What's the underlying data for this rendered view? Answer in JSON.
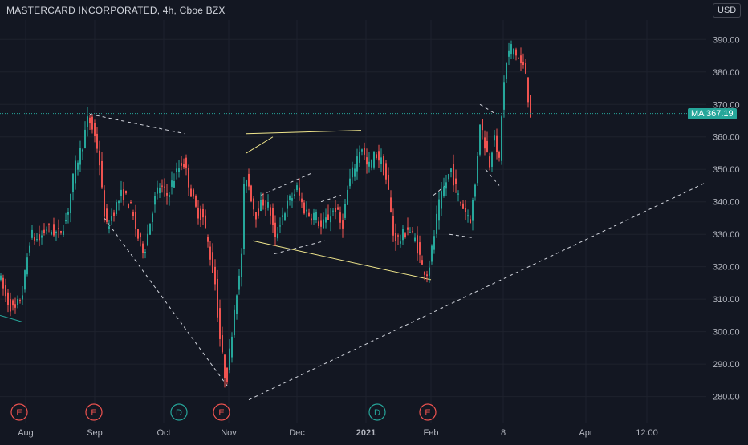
{
  "header": {
    "title": "MASTERCARD INCORPORATED, 4h, Cboe BZX",
    "currency": "USD"
  },
  "price_label": {
    "name": "MA",
    "value": "367.19"
  },
  "colors": {
    "background": "#131722",
    "up": "#26a69a",
    "down": "#ef5350",
    "grid": "#1e222d",
    "axis_text": "#b2b5be",
    "pattern_yellow": "#f0e68c",
    "trendline": "#d1d4dc"
  },
  "chart_data": {
    "type": "candlestick",
    "title": "MASTERCARD INCORPORATED, 4h, Cboe BZX",
    "ylim": [
      272,
      396
    ],
    "yticks": [
      280,
      290,
      300,
      310,
      320,
      330,
      340,
      350,
      360,
      370,
      380,
      390
    ],
    "ytick_labels": [
      "280.00",
      "290.00",
      "300.00",
      "310.00",
      "320.00",
      "330.00",
      "340.00",
      "350.00",
      "360.00",
      "370.00",
      "380.00",
      "390.00"
    ],
    "xticks": [
      {
        "label": "Aug",
        "bold": false,
        "pos": 32
      },
      {
        "label": "Sep",
        "bold": false,
        "pos": 118
      },
      {
        "label": "Oct",
        "bold": false,
        "pos": 204
      },
      {
        "label": "Nov",
        "bold": false,
        "pos": 285
      },
      {
        "label": "Dec",
        "bold": false,
        "pos": 370
      },
      {
        "label": "2021",
        "bold": true,
        "pos": 456
      },
      {
        "label": "Feb",
        "bold": false,
        "pos": 537
      },
      {
        "label": "8",
        "bold": false,
        "pos": 627
      },
      {
        "label": "Apr",
        "bold": false,
        "pos": 730
      },
      {
        "label": "12:00",
        "bold": false,
        "pos": 806
      }
    ],
    "last_price": 367.19,
    "events": [
      {
        "type": "E",
        "pos": 24
      },
      {
        "type": "E",
        "pos": 117
      },
      {
        "type": "D",
        "pos": 223
      },
      {
        "type": "E",
        "pos": 276
      },
      {
        "type": "D",
        "pos": 470
      },
      {
        "type": "E",
        "pos": 533
      }
    ],
    "price_path": [
      [
        0,
        318
      ],
      [
        10,
        310
      ],
      [
        20,
        306
      ],
      [
        30,
        312
      ],
      [
        40,
        330
      ],
      [
        50,
        328
      ],
      [
        60,
        332
      ],
      [
        75,
        330
      ],
      [
        85,
        335
      ],
      [
        95,
        350
      ],
      [
        105,
        358
      ],
      [
        112,
        366
      ],
      [
        118,
        362
      ],
      [
        125,
        355
      ],
      [
        130,
        340
      ],
      [
        135,
        332
      ],
      [
        145,
        338
      ],
      [
        155,
        343
      ],
      [
        165,
        338
      ],
      [
        175,
        328
      ],
      [
        182,
        325
      ],
      [
        192,
        338
      ],
      [
        200,
        345
      ],
      [
        210,
        342
      ],
      [
        220,
        348
      ],
      [
        230,
        353
      ],
      [
        238,
        345
      ],
      [
        245,
        338
      ],
      [
        255,
        335
      ],
      [
        265,
        322
      ],
      [
        270,
        315
      ],
      [
        275,
        300
      ],
      [
        280,
        290
      ],
      [
        284,
        284
      ],
      [
        290,
        298
      ],
      [
        296,
        312
      ],
      [
        302,
        318
      ],
      [
        307,
        350
      ],
      [
        312,
        345
      ],
      [
        320,
        336
      ],
      [
        330,
        340
      ],
      [
        338,
        338
      ],
      [
        345,
        328
      ],
      [
        352,
        335
      ],
      [
        362,
        340
      ],
      [
        372,
        344
      ],
      [
        380,
        338
      ],
      [
        388,
        336
      ],
      [
        395,
        336
      ],
      [
        402,
        332
      ],
      [
        410,
        335
      ],
      [
        420,
        338
      ],
      [
        428,
        332
      ],
      [
        436,
        345
      ],
      [
        445,
        352
      ],
      [
        452,
        358
      ],
      [
        460,
        350
      ],
      [
        470,
        355
      ],
      [
        478,
        352
      ],
      [
        485,
        345
      ],
      [
        492,
        330
      ],
      [
        500,
        328
      ],
      [
        510,
        332
      ],
      [
        520,
        328
      ],
      [
        528,
        320
      ],
      [
        535,
        318
      ],
      [
        540,
        325
      ],
      [
        548,
        338
      ],
      [
        556,
        345
      ],
      [
        564,
        350
      ],
      [
        572,
        342
      ],
      [
        580,
        338
      ],
      [
        588,
        335
      ],
      [
        594,
        345
      ],
      [
        600,
        365
      ],
      [
        606,
        358
      ],
      [
        612,
        352
      ],
      [
        618,
        362
      ],
      [
        623,
        348
      ],
      [
        628,
        372
      ],
      [
        634,
        385
      ],
      [
        640,
        388
      ],
      [
        646,
        385
      ],
      [
        652,
        382
      ],
      [
        657,
        380
      ],
      [
        662,
        367.19
      ]
    ]
  }
}
